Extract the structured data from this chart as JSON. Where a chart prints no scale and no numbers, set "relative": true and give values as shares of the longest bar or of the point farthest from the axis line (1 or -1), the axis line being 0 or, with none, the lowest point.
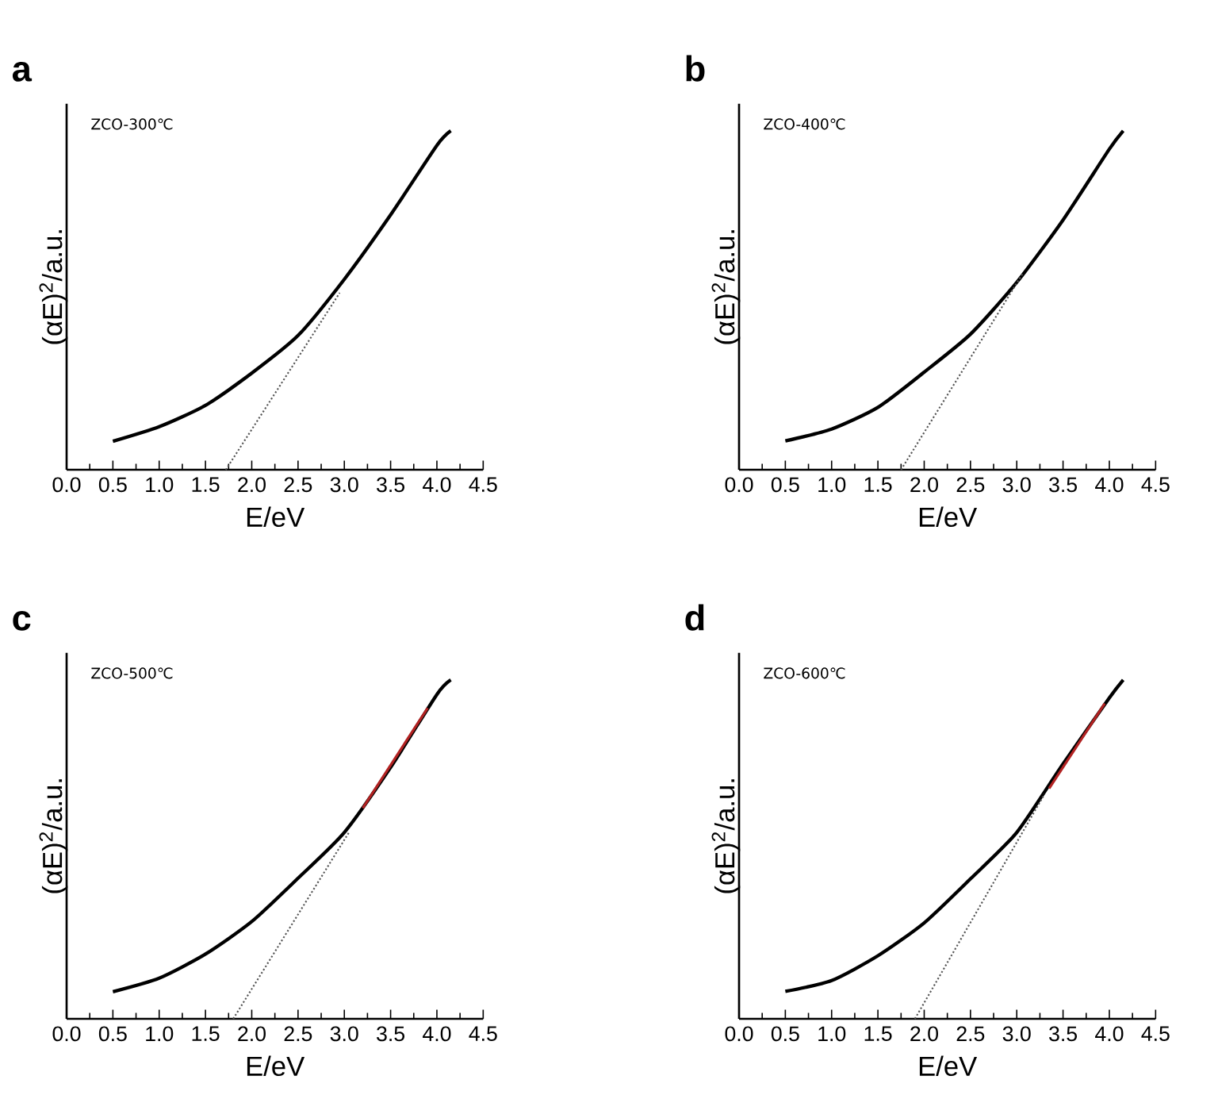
{
  "chart_data": [
    {
      "type": "line",
      "title": "a",
      "xlabel": "E/eV",
      "ylabel": "(αE)$^{2}$/a.u.",
      "relative": true,
      "annotations": [
        "ZCO-300℃"
      ],
      "xlim": [
        0,
        4.5
      ],
      "xticks": [
        {
          "value": 0,
          "label": "0.0"
        },
        {
          "value": 0.5,
          "label": "0.5"
        },
        {
          "value": 1,
          "label": "1.0"
        },
        {
          "value": 1.5,
          "label": "1.5"
        },
        {
          "value": 2,
          "label": "2.0"
        },
        {
          "value": 2.5,
          "label": "2.5"
        },
        {
          "value": 3,
          "label": "3.0"
        },
        {
          "value": 3.5,
          "label": "3.5"
        },
        {
          "value": 4,
          "label": "4.0"
        },
        {
          "value": 4.5,
          "label": "4.5"
        }
      ],
      "series": [
        {
          "type": "line",
          "color": "#000000",
          "x": [
            0.5,
            1.0,
            1.5,
            2.0,
            2.5,
            3.0,
            3.5,
            4.0,
            4.15
          ],
          "values": [
            0.084,
            0.127,
            0.19,
            0.285,
            0.396,
            0.562,
            0.752,
            0.957,
            1
          ]
        },
        {
          "type": "line",
          "color": "#555555",
          "line_style": "dotted",
          "x": [
            1.72,
            2.95
          ],
          "values": [
            0,
            0.522
          ]
        }
      ]
    },
    {
      "type": "line",
      "title": "b",
      "xlabel": "E/eV",
      "ylabel": "(αE)$^{2}$/a.u.",
      "relative": true,
      "annotations": [
        "ZCO-400℃"
      ],
      "xlim": [
        0,
        4.5
      ],
      "xticks": [
        {
          "value": 0,
          "label": "0.0"
        },
        {
          "value": 0.5,
          "label": "0.5"
        },
        {
          "value": 1,
          "label": "1.0"
        },
        {
          "value": 1.5,
          "label": "1.5"
        },
        {
          "value": 2,
          "label": "2.0"
        },
        {
          "value": 2.5,
          "label": "2.5"
        },
        {
          "value": 3,
          "label": "3.0"
        },
        {
          "value": 3.5,
          "label": "3.5"
        },
        {
          "value": 4,
          "label": "4.0"
        },
        {
          "value": 4.5,
          "label": "4.5"
        }
      ],
      "series": [
        {
          "type": "line",
          "color": "#000000",
          "x": [
            0.5,
            1.0,
            1.5,
            2.0,
            2.5,
            3.0,
            3.5,
            4.0,
            4.15
          ],
          "values": [
            0.085,
            0.12,
            0.184,
            0.288,
            0.4,
            0.553,
            0.737,
            0.946,
            1
          ]
        },
        {
          "type": "line",
          "color": "#555555",
          "line_style": "dotted",
          "x": [
            1.75,
            3.06
          ],
          "values": [
            0,
            0.577
          ]
        }
      ]
    },
    {
      "type": "line",
      "title": "c",
      "xlabel": "E/eV",
      "ylabel": "(αE)$^{2}$/a.u.",
      "relative": true,
      "annotations": [
        "ZCO-500℃"
      ],
      "xlim": [
        0,
        4.5
      ],
      "xticks": [
        {
          "value": 0,
          "label": "0.0"
        },
        {
          "value": 0.5,
          "label": "0.5"
        },
        {
          "value": 1,
          "label": "1.0"
        },
        {
          "value": 1.5,
          "label": "1.5"
        },
        {
          "value": 2,
          "label": "2.0"
        },
        {
          "value": 2.5,
          "label": "2.5"
        },
        {
          "value": 3,
          "label": "3.0"
        },
        {
          "value": 3.5,
          "label": "3.5"
        },
        {
          "value": 4,
          "label": "4.0"
        },
        {
          "value": 4.5,
          "label": "4.5"
        }
      ],
      "series": [
        {
          "type": "line",
          "color": "#000000",
          "x": [
            0.5,
            1.0,
            1.5,
            2.0,
            2.5,
            3.0,
            3.5,
            4.0,
            4.15
          ],
          "values": [
            0.08,
            0.12,
            0.191,
            0.287,
            0.415,
            0.55,
            0.742,
            0.957,
            1
          ]
        },
        {
          "type": "line",
          "color": "#555555",
          "line_style": "dotted",
          "x": [
            1.8,
            3.05
          ],
          "values": [
            0,
            0.55
          ]
        },
        {
          "type": "line",
          "color": "#b22222",
          "x": [
            3.2,
            3.9
          ],
          "values": [
            0.622,
            0.917
          ]
        }
      ]
    },
    {
      "type": "line",
      "title": "d",
      "xlabel": "E/eV",
      "ylabel": "(αE)$^{2}$/a.u.",
      "relative": true,
      "annotations": [
        "ZCO-600℃"
      ],
      "xlim": [
        0,
        4.5
      ],
      "xticks": [
        {
          "value": 0,
          "label": "0.0"
        },
        {
          "value": 0.5,
          "label": "0.5"
        },
        {
          "value": 1,
          "label": "1.0"
        },
        {
          "value": 1.5,
          "label": "1.5"
        },
        {
          "value": 2,
          "label": "2.0"
        },
        {
          "value": 2.5,
          "label": "2.5"
        },
        {
          "value": 3,
          "label": "3.0"
        },
        {
          "value": 3.5,
          "label": "3.5"
        },
        {
          "value": 4,
          "label": "4.0"
        },
        {
          "value": 4.5,
          "label": "4.5"
        }
      ],
      "series": [
        {
          "type": "line",
          "color": "#000000",
          "x": [
            0.5,
            1.0,
            1.5,
            2.0,
            2.5,
            3.0,
            3.5,
            4.0,
            4.15
          ],
          "values": [
            0.081,
            0.113,
            0.186,
            0.283,
            0.413,
            0.55,
            0.752,
            0.947,
            1
          ]
        },
        {
          "type": "line",
          "color": "#555555",
          "line_style": "dotted",
          "x": [
            1.9,
            3.3
          ],
          "values": [
            0,
            0.663
          ]
        },
        {
          "type": "line",
          "color": "#b22222",
          "x": [
            3.35,
            3.95
          ],
          "values": [
            0.68,
            0.93
          ]
        }
      ]
    }
  ]
}
